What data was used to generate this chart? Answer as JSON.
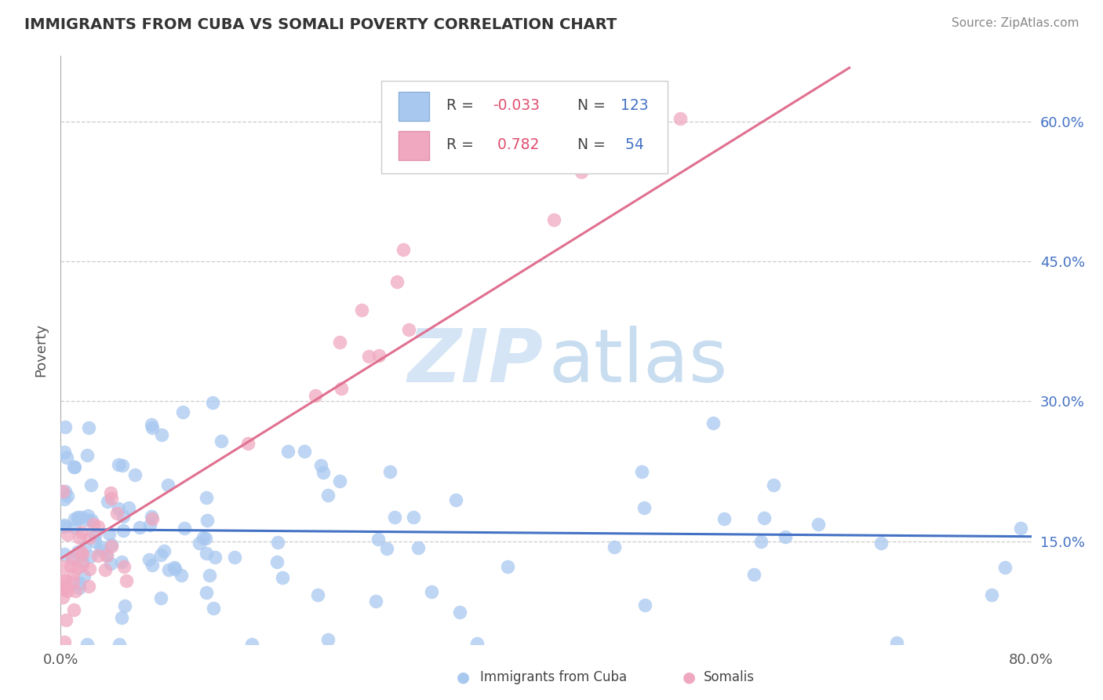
{
  "title": "IMMIGRANTS FROM CUBA VS SOMALI POVERTY CORRELATION CHART",
  "source": "Source: ZipAtlas.com",
  "ylabel": "Poverty",
  "yticks": [
    "15.0%",
    "30.0%",
    "45.0%",
    "60.0%"
  ],
  "ytick_vals": [
    0.15,
    0.3,
    0.45,
    0.6
  ],
  "xlim": [
    0.0,
    0.8
  ],
  "ylim": [
    0.04,
    0.67
  ],
  "color_cuba": "#a8c8f0",
  "color_somali": "#f0a8c0",
  "color_line_cuba": "#4472c4",
  "color_line_somali": "#e07090",
  "watermark_zip_color": "#d5e5f5",
  "watermark_atlas_color": "#c8ddf0"
}
